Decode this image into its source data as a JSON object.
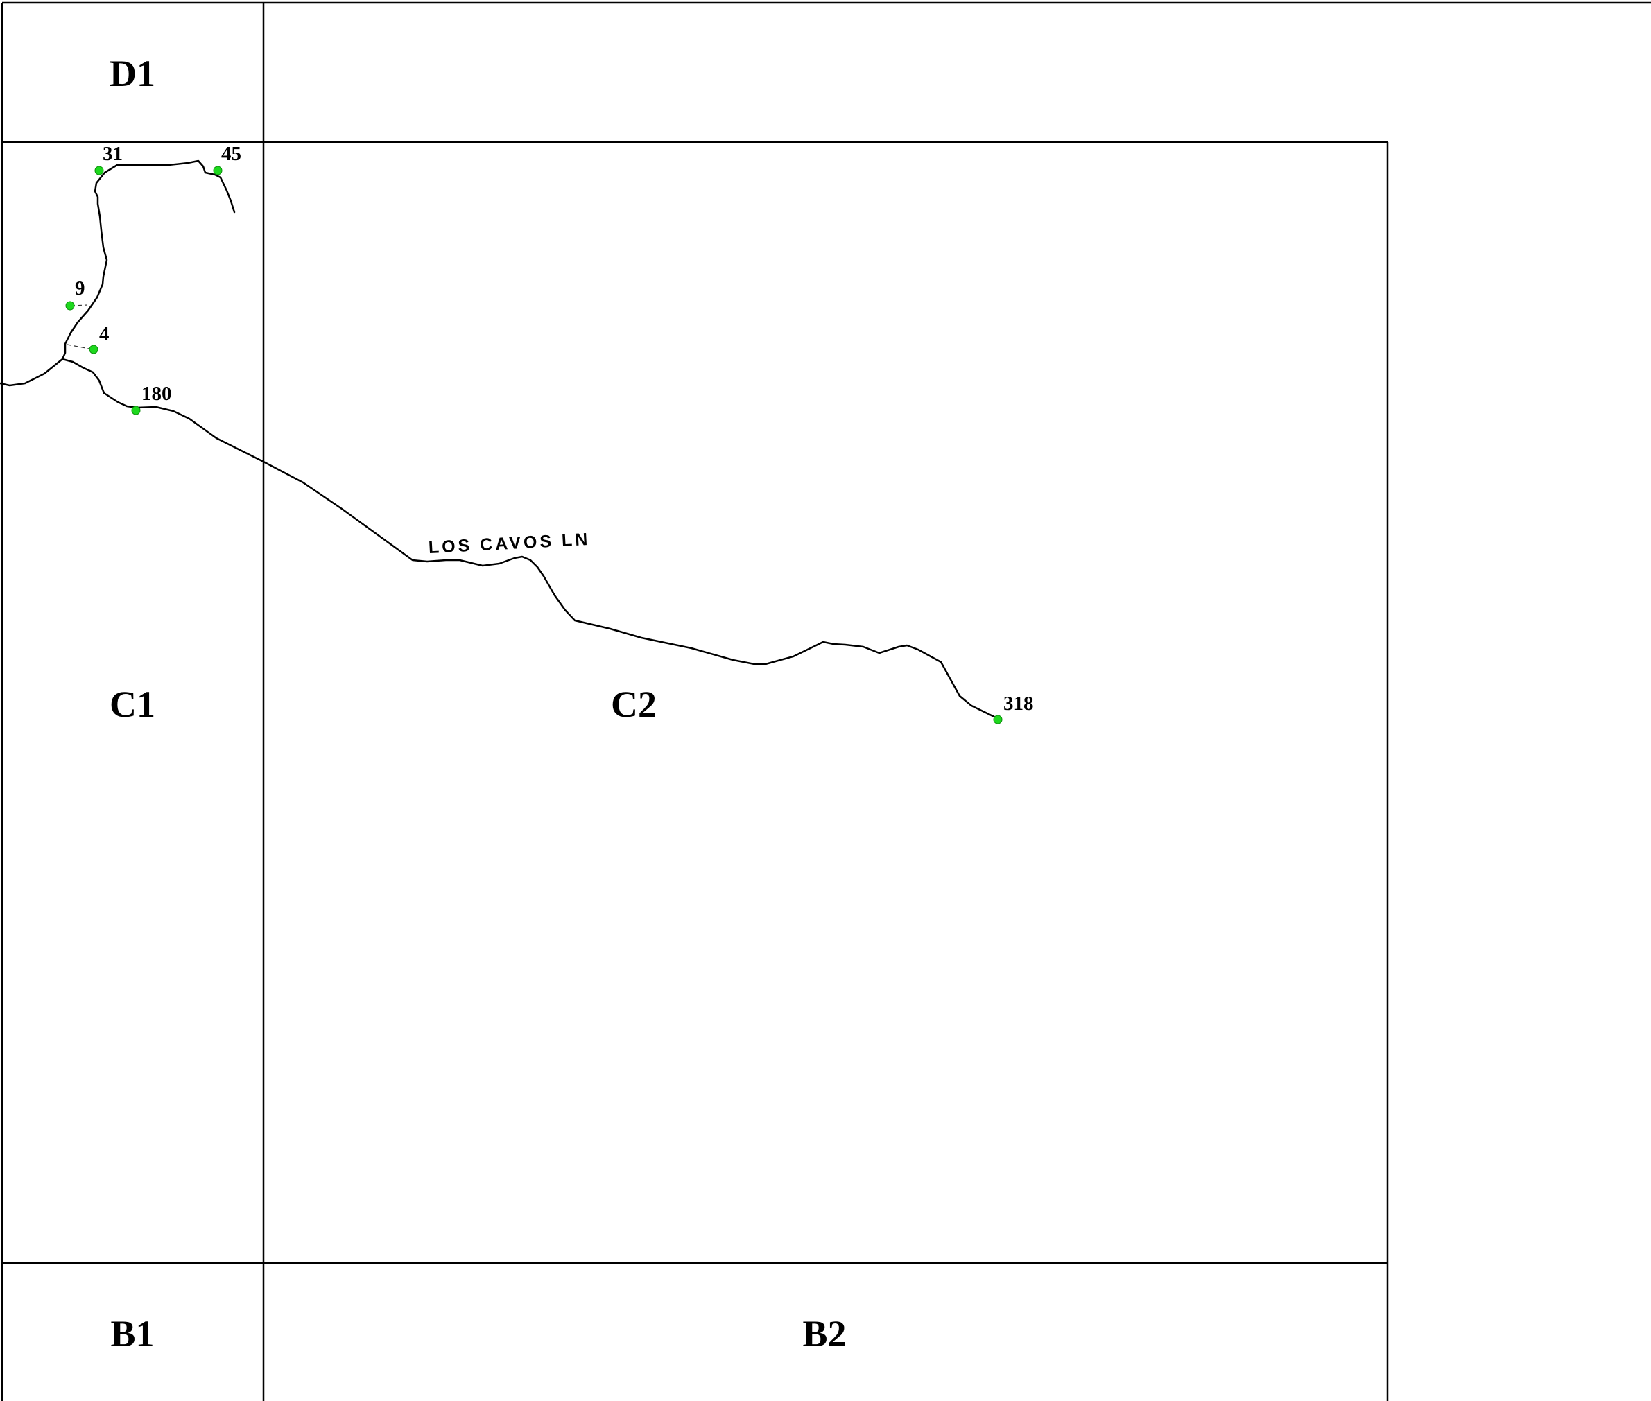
{
  "grid_cells": [
    {
      "id": "d1",
      "label": "D1"
    },
    {
      "id": "c1",
      "label": "C1"
    },
    {
      "id": "c2",
      "label": "C2"
    },
    {
      "id": "b1",
      "label": "B1"
    },
    {
      "id": "b2",
      "label": "B2"
    }
  ],
  "street": {
    "name": "LOS CAVOS LN"
  },
  "address_points": [
    {
      "id": "31",
      "label": "31"
    },
    {
      "id": "45",
      "label": "45"
    },
    {
      "id": "9",
      "label": "9"
    },
    {
      "id": "4",
      "label": "4"
    },
    {
      "id": "180",
      "label": "180"
    },
    {
      "id": "318",
      "label": "318"
    }
  ],
  "colors": {
    "address_point": "#1ed81e",
    "lines": "#000000",
    "background": "#ffffff"
  }
}
